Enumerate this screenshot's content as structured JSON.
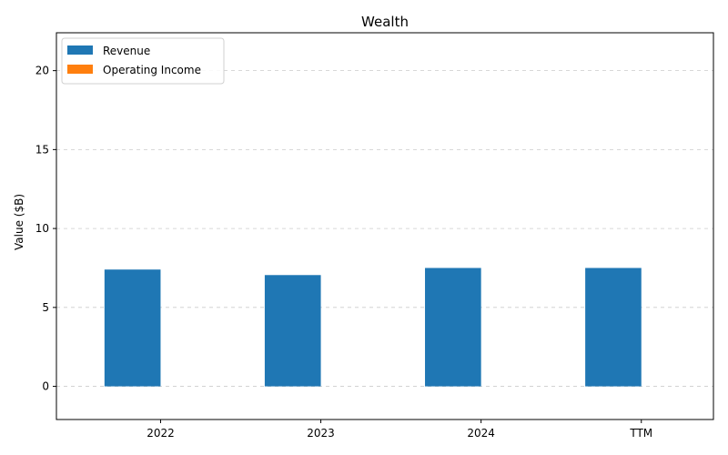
{
  "chart_data": {
    "type": "bar",
    "title": "Wealth",
    "xlabel": "",
    "ylabel": "Value ($B)",
    "categories": [
      "2022",
      "2023",
      "2024",
      "TTM"
    ],
    "series": [
      {
        "name": "Revenue",
        "color": "#1f77b4",
        "values": [
          7.4,
          7.05,
          7.5,
          7.5
        ]
      },
      {
        "name": "Operating Income",
        "color": "#ff7f0e",
        "values": [
          0,
          0,
          0,
          0
        ]
      }
    ],
    "ylim": [
      -2.1,
      22.4
    ],
    "yticks": [
      0,
      5,
      10,
      15,
      20
    ],
    "grid": "y-dashed",
    "legend_position": "top-left"
  }
}
